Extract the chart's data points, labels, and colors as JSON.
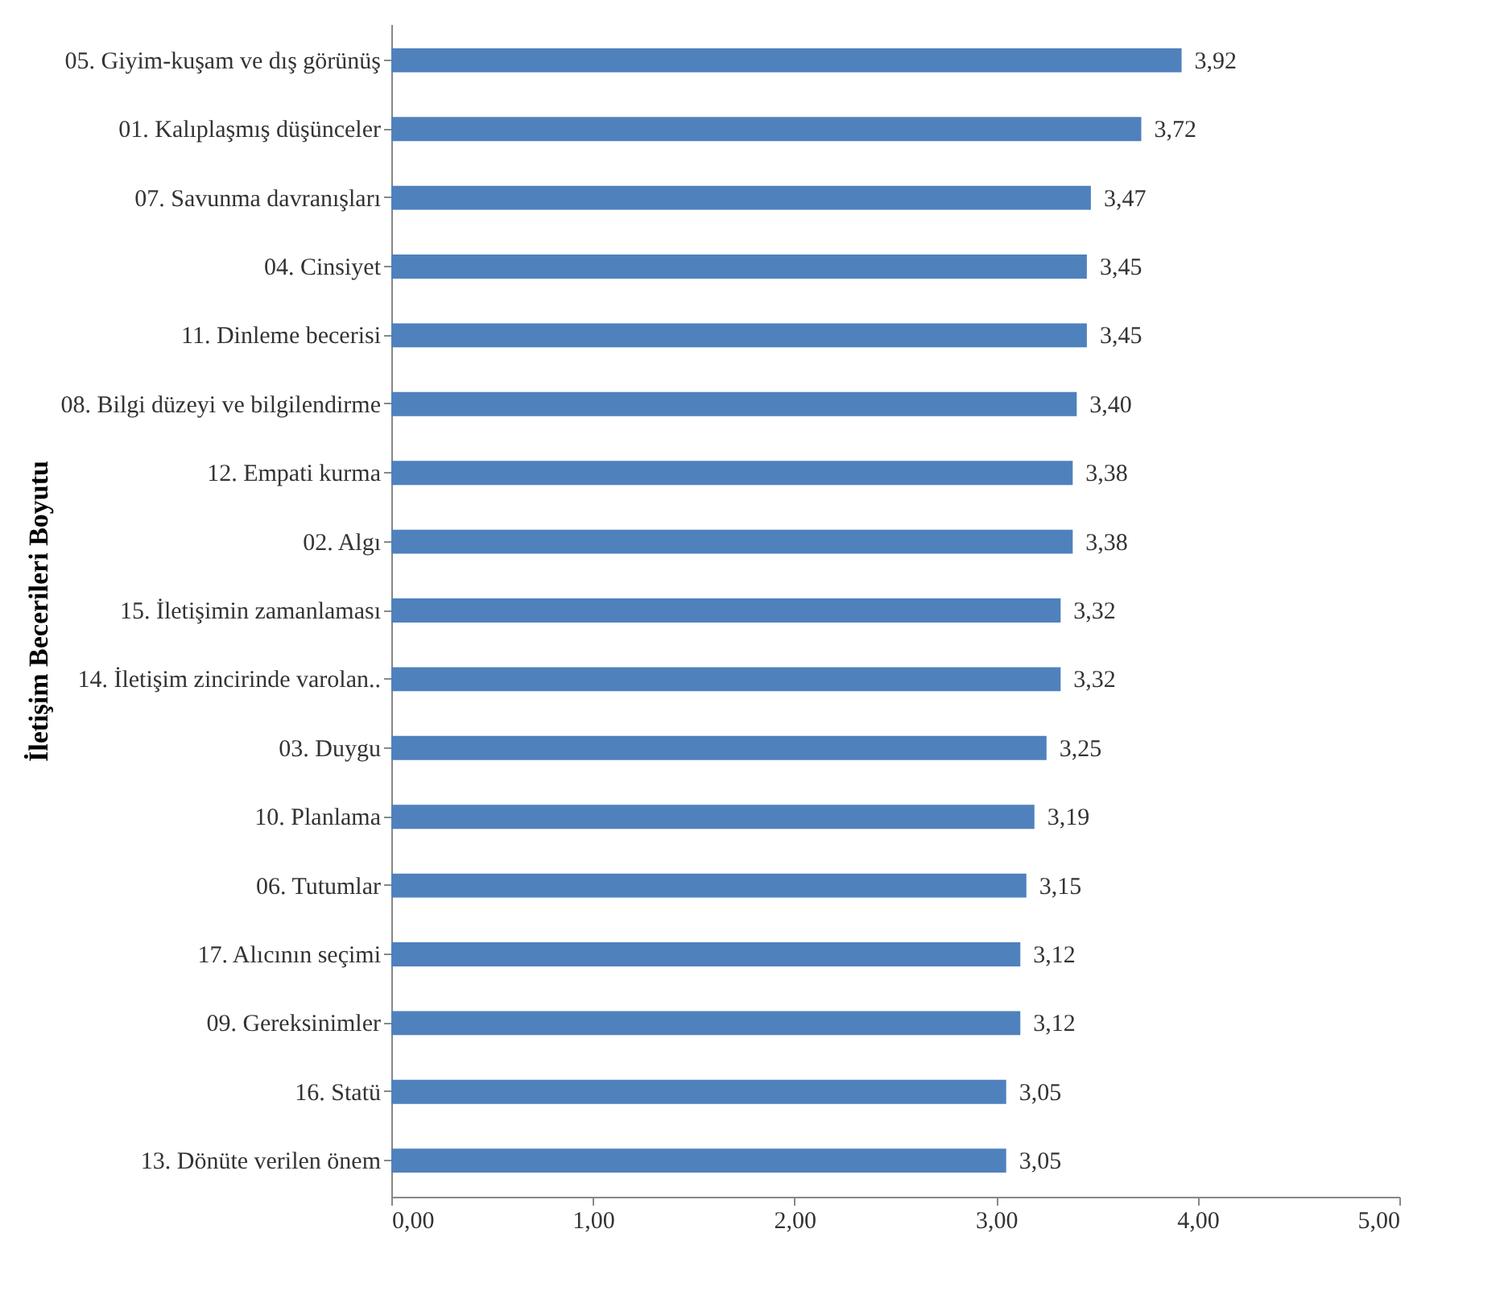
{
  "chart_data": {
    "type": "bar",
    "orientation": "horizontal",
    "ylabel": "İletişim Becerileri Boyutu",
    "categories": [
      "05. Giyim-kuşam ve dış görünüş",
      "01. Kalıplaşmış düşünceler",
      "07. Savunma davranışları",
      "04. Cinsiyet",
      "11. Dinleme becerisi",
      "08. Bilgi düzeyi ve bilgilendirme",
      "12. Empati kurma",
      "02. Algı",
      "15. İletişimin zamanlaması",
      "14. İletişim zincirinde varolan..",
      "03. Duygu",
      "10. Planlama",
      "06. Tutumlar",
      "17. Alıcının seçimi",
      "09. Gereksinimler",
      "16. Statü",
      "13. Dönüte verilen önem"
    ],
    "values": [
      3.92,
      3.72,
      3.47,
      3.45,
      3.45,
      3.4,
      3.38,
      3.38,
      3.32,
      3.32,
      3.25,
      3.19,
      3.15,
      3.12,
      3.12,
      3.05,
      3.05
    ],
    "value_labels": [
      "3,92",
      "3,72",
      "3,47",
      "3,45",
      "3,45",
      "3,40",
      "3,38",
      "3,38",
      "3,32",
      "3,32",
      "3,25",
      "3,19",
      "3,15",
      "3,12",
      "3,12",
      "3,05",
      "3,05"
    ],
    "color": "#4f81bd",
    "xlim": [
      0,
      5
    ],
    "xticks": [
      {
        "value": 0,
        "label": "0,00"
      },
      {
        "value": 1,
        "label": "1,00"
      },
      {
        "value": 2,
        "label": "2,00"
      },
      {
        "value": 3,
        "label": "3,00"
      },
      {
        "value": 4,
        "label": "4,00"
      },
      {
        "value": 5,
        "label": "5,00"
      }
    ],
    "grid": false
  }
}
